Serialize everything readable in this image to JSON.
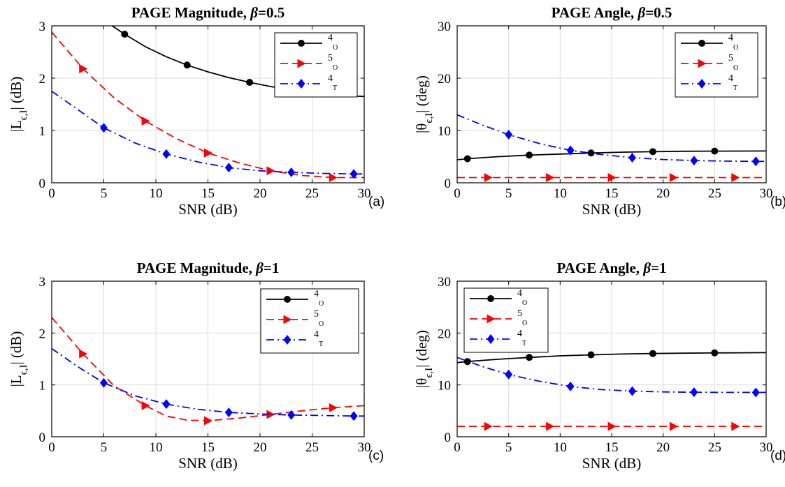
{
  "colors": {
    "black_series": "#000000",
    "red_series": "#ff0000",
    "blue_series": "#0000ff",
    "grid": "#dcdcdc"
  },
  "chart_data": [
    {
      "id": "a",
      "type": "line",
      "title_prefix": "PAGE Magnitude, ",
      "title_symbol": "β",
      "title_suffix": "=0.5",
      "xlabel": "SNR (dB)",
      "ylabel_prefix": "|L",
      "ylabel_sub": "ϵ,I",
      "ylabel_suffix": "| (dB)",
      "panel_label": "(a)",
      "xlim": [
        0,
        30
      ],
      "ylim": [
        0,
        3
      ],
      "xticks": [
        0,
        5,
        10,
        15,
        20,
        25,
        30
      ],
      "yticks": [
        0,
        1,
        2,
        3
      ],
      "grid": true,
      "legend_position": "top-right",
      "series": [
        {
          "name_main": "4",
          "name_sub": "O",
          "color": "#000000",
          "style": "solid",
          "marker": "circle",
          "x": [
            5.8,
            7,
            9,
            11,
            13,
            15,
            17,
            19,
            21,
            23,
            25,
            27,
            29,
            30
          ],
          "y": [
            3.0,
            2.84,
            2.6,
            2.41,
            2.25,
            2.12,
            2.01,
            1.92,
            1.84,
            1.78,
            1.73,
            1.69,
            1.66,
            1.65
          ],
          "marker_x": [
            7,
            13,
            19,
            25
          ],
          "marker_y": [
            2.84,
            2.25,
            1.92,
            1.73
          ]
        },
        {
          "name_main": "5",
          "name_sub": "O",
          "color": "#ff0000",
          "style": "dashed",
          "marker": "triangle-right",
          "x": [
            0,
            3,
            6,
            9,
            12,
            15,
            18,
            21,
            24,
            27,
            30
          ],
          "y": [
            2.88,
            2.18,
            1.62,
            1.18,
            0.84,
            0.57,
            0.38,
            0.23,
            0.14,
            0.1,
            0.1
          ],
          "marker_x": [
            3,
            9,
            15,
            21,
            27
          ],
          "marker_y": [
            2.18,
            1.18,
            0.57,
            0.23,
            0.1
          ]
        },
        {
          "name_main": "4",
          "name_sub": "T",
          "color": "#0000ff",
          "style": "dashdot",
          "marker": "diamond",
          "x": [
            0,
            5,
            8,
            11,
            14,
            17,
            20,
            23,
            26,
            29,
            30
          ],
          "y": [
            1.75,
            1.05,
            0.76,
            0.55,
            0.4,
            0.29,
            0.23,
            0.2,
            0.18,
            0.17,
            0.17
          ],
          "marker_x": [
            5,
            11,
            17,
            23,
            29
          ],
          "marker_y": [
            1.05,
            0.55,
            0.29,
            0.2,
            0.17
          ]
        }
      ]
    },
    {
      "id": "b",
      "type": "line",
      "title_prefix": "PAGE Angle, ",
      "title_symbol": "β",
      "title_suffix": "=0.5",
      "xlabel": "SNR (dB)",
      "ylabel_prefix": "|θ",
      "ylabel_sub": "ϵ,I",
      "ylabel_suffix": "| (deg)",
      "panel_label": "(b)",
      "xlim": [
        0,
        30
      ],
      "ylim": [
        0,
        30
      ],
      "xticks": [
        0,
        5,
        10,
        15,
        20,
        25,
        30
      ],
      "yticks": [
        0,
        10,
        20,
        30
      ],
      "grid": true,
      "legend_position": "top-right",
      "series": [
        {
          "name_main": "4",
          "name_sub": "O",
          "color": "#000000",
          "style": "solid",
          "marker": "circle",
          "x": [
            0,
            1,
            4,
            7,
            10,
            13,
            16,
            19,
            22,
            25,
            28,
            30
          ],
          "y": [
            4.4,
            4.6,
            5.0,
            5.3,
            5.5,
            5.7,
            5.85,
            5.95,
            6.02,
            6.05,
            6.07,
            6.08
          ],
          "marker_x": [
            1,
            7,
            13,
            19,
            25
          ],
          "marker_y": [
            4.6,
            5.3,
            5.7,
            5.95,
            6.05
          ]
        },
        {
          "name_main": "5",
          "name_sub": "O",
          "color": "#ff0000",
          "style": "dashed",
          "marker": "triangle-right",
          "x": [
            0,
            30
          ],
          "y": [
            1.0,
            1.0
          ],
          "marker_x": [
            3,
            9,
            15,
            21,
            27
          ],
          "marker_y": [
            1.0,
            1.0,
            1.0,
            1.0,
            1.0
          ]
        },
        {
          "name_main": "4",
          "name_sub": "T",
          "color": "#0000ff",
          "style": "dashdot",
          "marker": "diamond",
          "x": [
            0,
            2.5,
            5,
            8,
            11,
            14,
            17,
            20,
            23,
            26,
            29,
            30
          ],
          "y": [
            13.0,
            11.0,
            9.2,
            7.5,
            6.2,
            5.4,
            4.8,
            4.45,
            4.25,
            4.15,
            4.1,
            4.1
          ],
          "marker_x": [
            5,
            11,
            17,
            23,
            29
          ],
          "marker_y": [
            9.2,
            6.2,
            4.8,
            4.25,
            4.1
          ]
        }
      ]
    },
    {
      "id": "c",
      "type": "line",
      "title_prefix": "PAGE Magnitude, ",
      "title_symbol": "β",
      "title_suffix": "=1",
      "xlabel": "SNR (dB)",
      "ylabel_prefix": "|L",
      "ylabel_sub": "ϵ,I",
      "ylabel_suffix": "| (dB)",
      "panel_label": "(c)",
      "xlim": [
        0,
        30
      ],
      "ylim": [
        0,
        3
      ],
      "xticks": [
        0,
        5,
        10,
        15,
        20,
        25,
        30
      ],
      "yticks": [
        0,
        1,
        2,
        3
      ],
      "grid": true,
      "legend_position": "top-right",
      "series": [
        {
          "name_main": "4",
          "name_sub": "O",
          "color": "#000000",
          "style": "solid",
          "marker": "circle",
          "x": [],
          "y": [],
          "marker_x": [],
          "marker_y": []
        },
        {
          "name_main": "5",
          "name_sub": "O",
          "color": "#ff0000",
          "style": "dashed",
          "marker": "triangle-right",
          "x": [
            0,
            3,
            6,
            9,
            11,
            13,
            15,
            18,
            21,
            24,
            27,
            30
          ],
          "y": [
            2.3,
            1.6,
            0.98,
            0.6,
            0.4,
            0.32,
            0.31,
            0.36,
            0.43,
            0.5,
            0.56,
            0.6
          ],
          "marker_x": [
            3,
            9,
            15,
            21,
            27
          ],
          "marker_y": [
            1.6,
            0.6,
            0.31,
            0.43,
            0.56
          ]
        },
        {
          "name_main": "4",
          "name_sub": "T",
          "color": "#0000ff",
          "style": "dashdot",
          "marker": "diamond",
          "x": [
            0,
            2.5,
            5,
            8,
            11,
            14,
            17,
            20,
            23,
            26,
            29,
            30
          ],
          "y": [
            1.7,
            1.35,
            1.04,
            0.79,
            0.63,
            0.53,
            0.47,
            0.44,
            0.42,
            0.41,
            0.4,
            0.4
          ],
          "marker_x": [
            5,
            11,
            17,
            23,
            29
          ],
          "marker_y": [
            1.04,
            0.63,
            0.47,
            0.42,
            0.4
          ]
        }
      ]
    },
    {
      "id": "d",
      "type": "line",
      "title_prefix": "PAGE Angle, ",
      "title_symbol": "β",
      "title_suffix": "=1",
      "xlabel": "SNR (dB)",
      "ylabel_prefix": "|θ",
      "ylabel_sub": "ϵ,I",
      "ylabel_suffix": "| (deg)",
      "panel_label": "(d)",
      "xlim": [
        0,
        30
      ],
      "ylim": [
        0,
        30
      ],
      "xticks": [
        0,
        5,
        10,
        15,
        20,
        25,
        30
      ],
      "yticks": [
        0,
        10,
        20,
        30
      ],
      "grid": true,
      "legend_position": "top-left",
      "series": [
        {
          "name_main": "4",
          "name_sub": "O",
          "color": "#000000",
          "style": "solid",
          "marker": "circle",
          "x": [
            0,
            1,
            4,
            7,
            10,
            13,
            16,
            19,
            22,
            25,
            28,
            30
          ],
          "y": [
            14.3,
            14.5,
            14.95,
            15.3,
            15.6,
            15.8,
            15.95,
            16.05,
            16.12,
            16.17,
            16.2,
            16.22
          ],
          "marker_x": [
            1,
            7,
            13,
            19,
            25
          ],
          "marker_y": [
            14.5,
            15.3,
            15.8,
            16.05,
            16.17
          ]
        },
        {
          "name_main": "5",
          "name_sub": "O",
          "color": "#ff0000",
          "style": "dashed",
          "marker": "triangle-right",
          "x": [
            0,
            30
          ],
          "y": [
            2.0,
            2.0
          ],
          "marker_x": [
            3,
            9,
            15,
            21,
            27
          ],
          "marker_y": [
            2.0,
            2.0,
            2.0,
            2.0,
            2.0
          ]
        },
        {
          "name_main": "4",
          "name_sub": "T",
          "color": "#0000ff",
          "style": "dashdot",
          "marker": "diamond",
          "x": [
            0,
            2.5,
            5,
            8,
            11,
            14,
            17,
            20,
            23,
            26,
            29,
            30
          ],
          "y": [
            15.3,
            13.5,
            12.0,
            10.7,
            9.7,
            9.1,
            8.8,
            8.65,
            8.58,
            8.55,
            8.55,
            8.55
          ],
          "marker_x": [
            5,
            11,
            17,
            23,
            29
          ],
          "marker_y": [
            12.0,
            9.7,
            8.8,
            8.6,
            8.55
          ]
        }
      ]
    }
  ]
}
